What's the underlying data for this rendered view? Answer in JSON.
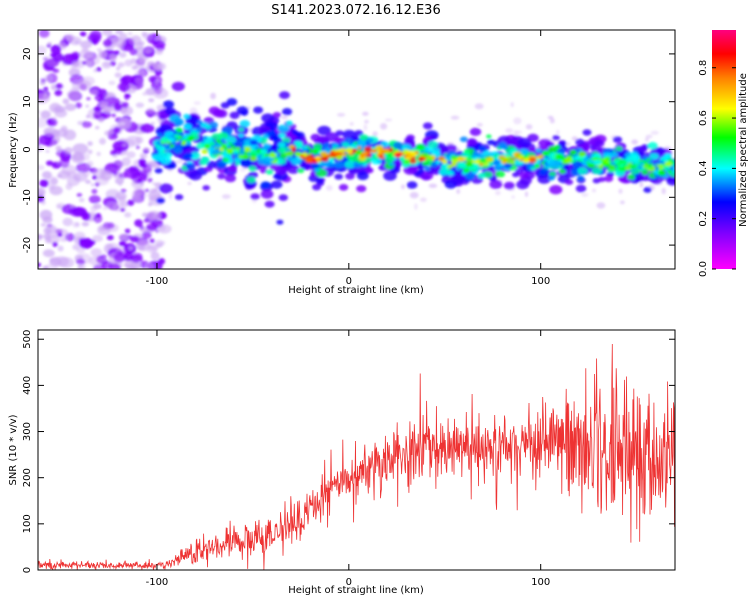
{
  "title": "S141.2023.072.16.12.E36",
  "chart_data": [
    {
      "type": "heatmap",
      "xlabel": "Height of straight line (km)",
      "ylabel": "Frequency (Hz)",
      "xlim": [
        -162,
        170
      ],
      "ylim": [
        -25,
        25
      ],
      "xticks": [
        -100,
        0,
        100
      ],
      "yticks": [
        -20,
        -10,
        0,
        10,
        20
      ],
      "colorbar": {
        "label": "Normalized spectral amplitude",
        "range": [
          0.0,
          0.95
        ],
        "ticks": [
          "0.0",
          "0.2",
          "0.4",
          "0.6",
          "0.8"
        ],
        "tick_values": [
          0.0,
          0.2,
          0.4,
          0.6,
          0.8
        ],
        "colormap": [
          "#ff00ff",
          "#7f00ff",
          "#0000ff",
          "#00ffff",
          "#00ff00",
          "#ffff00",
          "#ff8000",
          "#ff0000",
          "#ff007f"
        ]
      },
      "ridge": {
        "x": [
          -100,
          -90,
          -80,
          -60,
          -40,
          -30,
          -20,
          0,
          20,
          40,
          50,
          60,
          80,
          100,
          120,
          140,
          150,
          170
        ],
        "frequency": [
          0,
          2.5,
          1,
          0,
          -1,
          0,
          -2,
          -0.5,
          -1,
          -1.5,
          -3,
          -2.5,
          -2,
          -2,
          -2,
          -3,
          -3.5,
          -3.5
        ]
      },
      "noise_region": {
        "x": [
          -162,
          -100
        ],
        "amplitude": 0.3
      }
    },
    {
      "type": "line",
      "xlabel": "Height of straight line (km)",
      "ylabel": "SNR (10 * v/v)",
      "xlim": [
        -162,
        170
      ],
      "ylim": [
        0,
        520
      ],
      "xticks": [
        -100,
        0,
        100
      ],
      "yticks": [
        0,
        100,
        200,
        300,
        400,
        500
      ],
      "color": "#ee3333",
      "envelope": {
        "x": [
          -162,
          -95,
          -90,
          -80,
          -60,
          -40,
          -30,
          -20,
          -10,
          0,
          10,
          20,
          40,
          60,
          80,
          100,
          120,
          140,
          160,
          170
        ],
        "median": [
          10,
          10,
          20,
          40,
          60,
          70,
          100,
          130,
          170,
          200,
          210,
          240,
          260,
          260,
          265,
          270,
          260,
          250,
          250,
          250
        ],
        "spread": [
          5,
          5,
          10,
          15,
          20,
          25,
          30,
          30,
          30,
          30,
          35,
          40,
          40,
          40,
          45,
          55,
          80,
          85,
          90,
          90
        ]
      }
    }
  ]
}
